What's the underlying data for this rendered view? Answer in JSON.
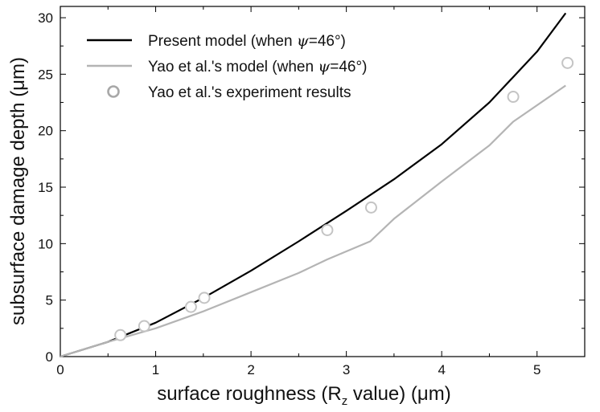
{
  "chart_data": {
    "type": "line",
    "xlabel": {
      "prefix": "surface roughness (R",
      "sub": "z",
      "suffix": " value) (μm)"
    },
    "ylabel": "subsurface damage depth (μm)",
    "xlim": [
      0,
      5.5
    ],
    "ylim": [
      0,
      31
    ],
    "xticks": [
      0,
      1,
      2,
      3,
      4,
      5
    ],
    "yticks": [
      0,
      5,
      10,
      15,
      20,
      25,
      30
    ],
    "grid": false,
    "legend": {
      "placement": "top-left",
      "entries": [
        {
          "prefix": "Present model (when ",
          "symbol": "ψ",
          "suffix": "=46°)"
        },
        {
          "prefix": "Yao et al.'s model (when ",
          "symbol": "ψ",
          "suffix": "=46°)"
        },
        {
          "text": "Yao et al.'s experiment results"
        }
      ]
    },
    "series": [
      {
        "style": "line",
        "color": "#000000",
        "points": [
          [
            0,
            0
          ],
          [
            0.5,
            1.3
          ],
          [
            1.0,
            3.0
          ],
          [
            1.5,
            5.2
          ],
          [
            2.0,
            7.6
          ],
          [
            2.5,
            10.2
          ],
          [
            3.0,
            12.9
          ],
          [
            3.5,
            15.7
          ],
          [
            4.0,
            18.8
          ],
          [
            4.5,
            22.5
          ],
          [
            5.0,
            27.0
          ],
          [
            5.3,
            30.4
          ]
        ]
      },
      {
        "style": "line",
        "color": "#b4b4b4",
        "points": [
          [
            0,
            0
          ],
          [
            0.5,
            1.3
          ],
          [
            1.0,
            2.5
          ],
          [
            1.5,
            4.0
          ],
          [
            2.0,
            5.7
          ],
          [
            2.5,
            7.4
          ],
          [
            2.8,
            8.6
          ],
          [
            3.25,
            10.2
          ],
          [
            3.5,
            12.2
          ],
          [
            4.0,
            15.5
          ],
          [
            4.5,
            18.7
          ],
          [
            4.75,
            20.8
          ],
          [
            5.3,
            24.0
          ]
        ]
      },
      {
        "style": "scatter",
        "color": "#c4c4c4",
        "points": [
          [
            0.63,
            1.9
          ],
          [
            0.88,
            2.7
          ],
          [
            1.37,
            4.4
          ],
          [
            1.51,
            5.2
          ],
          [
            2.8,
            11.2
          ],
          [
            3.26,
            13.2
          ],
          [
            4.75,
            23.0
          ],
          [
            5.32,
            26.0
          ]
        ]
      }
    ]
  }
}
